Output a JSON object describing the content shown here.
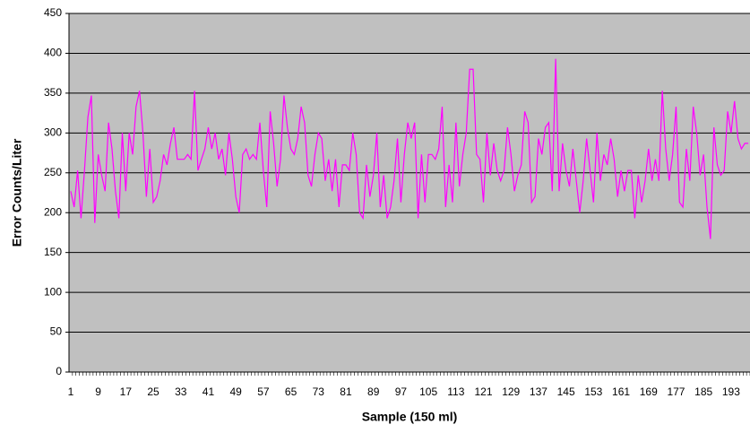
{
  "chart_data": {
    "type": "line",
    "x_label": "Sample (150 ml)",
    "y_label": "Error Counts/Liter",
    "x": [
      1,
      2,
      3,
      4,
      5,
      6,
      7,
      8,
      9,
      10,
      11,
      12,
      13,
      14,
      15,
      16,
      17,
      18,
      19,
      20,
      21,
      22,
      23,
      24,
      25,
      26,
      27,
      28,
      29,
      30,
      31,
      32,
      33,
      34,
      35,
      36,
      37,
      38,
      39,
      40,
      41,
      42,
      43,
      44,
      45,
      46,
      47,
      48,
      49,
      50,
      51,
      52,
      53,
      54,
      55,
      56,
      57,
      58,
      59,
      60,
      61,
      62,
      63,
      64,
      65,
      66,
      67,
      68,
      69,
      70,
      71,
      72,
      73,
      74,
      75,
      76,
      77,
      78,
      79,
      80,
      81,
      82,
      83,
      84,
      85,
      86,
      87,
      88,
      89,
      90,
      91,
      92,
      93,
      94,
      95,
      96,
      97,
      98,
      99,
      100,
      101,
      102,
      103,
      104,
      105,
      106,
      107,
      108,
      109,
      110,
      111,
      112,
      113,
      114,
      115,
      116,
      117,
      118,
      119,
      120,
      121,
      122,
      123,
      124,
      125,
      126,
      127,
      128,
      129,
      130,
      131,
      132,
      133,
      134,
      135,
      136,
      137,
      138,
      139,
      140,
      141,
      142,
      143,
      144,
      145,
      146,
      147,
      148,
      149,
      150,
      151,
      152,
      153,
      154,
      155,
      156,
      157,
      158,
      159,
      160,
      161,
      162,
      163,
      164,
      165,
      166,
      167,
      168,
      169,
      170,
      171,
      172,
      173,
      174,
      175,
      176,
      177,
      178,
      179,
      180,
      181,
      182,
      183,
      184,
      185,
      186,
      187,
      188,
      189,
      190,
      191,
      192,
      193,
      194,
      195,
      196,
      197,
      198
    ],
    "series": [
      {
        "color": "#ff00ff",
        "values": [
          227,
          207,
          253,
          193,
          253,
          320,
          347,
          187,
          273,
          247,
          227,
          313,
          280,
          227,
          193,
          300,
          227,
          300,
          273,
          333,
          353,
          300,
          220,
          280,
          213,
          220,
          240,
          273,
          260,
          287,
          307,
          267,
          267,
          267,
          273,
          267,
          353,
          253,
          267,
          280,
          307,
          280,
          300,
          267,
          280,
          247,
          300,
          267,
          220,
          200,
          273,
          280,
          267,
          273,
          267,
          313,
          253,
          207,
          327,
          287,
          233,
          267,
          347,
          307,
          280,
          273,
          293,
          333,
          313,
          247,
          233,
          273,
          300,
          293,
          240,
          267,
          227,
          267,
          207,
          260,
          260,
          253,
          300,
          273,
          200,
          193,
          260,
          220,
          247,
          300,
          207,
          247,
          193,
          207,
          240,
          293,
          213,
          273,
          313,
          293,
          313,
          193,
          273,
          213,
          273,
          273,
          267,
          280,
          333,
          207,
          260,
          213,
          313,
          233,
          273,
          300,
          380,
          380,
          273,
          267,
          213,
          300,
          247,
          287,
          253,
          240,
          253,
          307,
          273,
          227,
          247,
          260,
          327,
          313,
          213,
          220,
          293,
          273,
          307,
          313,
          227,
          393,
          227,
          287,
          253,
          233,
          280,
          240,
          200,
          240,
          293,
          253,
          213,
          300,
          240,
          273,
          260,
          293,
          267,
          220,
          253,
          227,
          253,
          253,
          193,
          247,
          213,
          240,
          280,
          240,
          267,
          240,
          353,
          280,
          240,
          273,
          333,
          213,
          207,
          280,
          240,
          333,
          300,
          247,
          273,
          207,
          167,
          307,
          260,
          247,
          253,
          327,
          300,
          340,
          293,
          280,
          287,
          287
        ]
      }
    ],
    "xlim": [
      0.5,
      198.5
    ],
    "xticks": [
      1,
      9,
      17,
      25,
      33,
      41,
      49,
      57,
      65,
      73,
      81,
      89,
      97,
      105,
      113,
      121,
      129,
      137,
      145,
      153,
      161,
      169,
      177,
      185,
      193
    ],
    "ylim": [
      0,
      450
    ],
    "yticks": [
      0,
      50,
      100,
      150,
      200,
      250,
      300,
      350,
      400,
      450
    ],
    "grid": true,
    "plot_background": "#c0c0c0"
  }
}
